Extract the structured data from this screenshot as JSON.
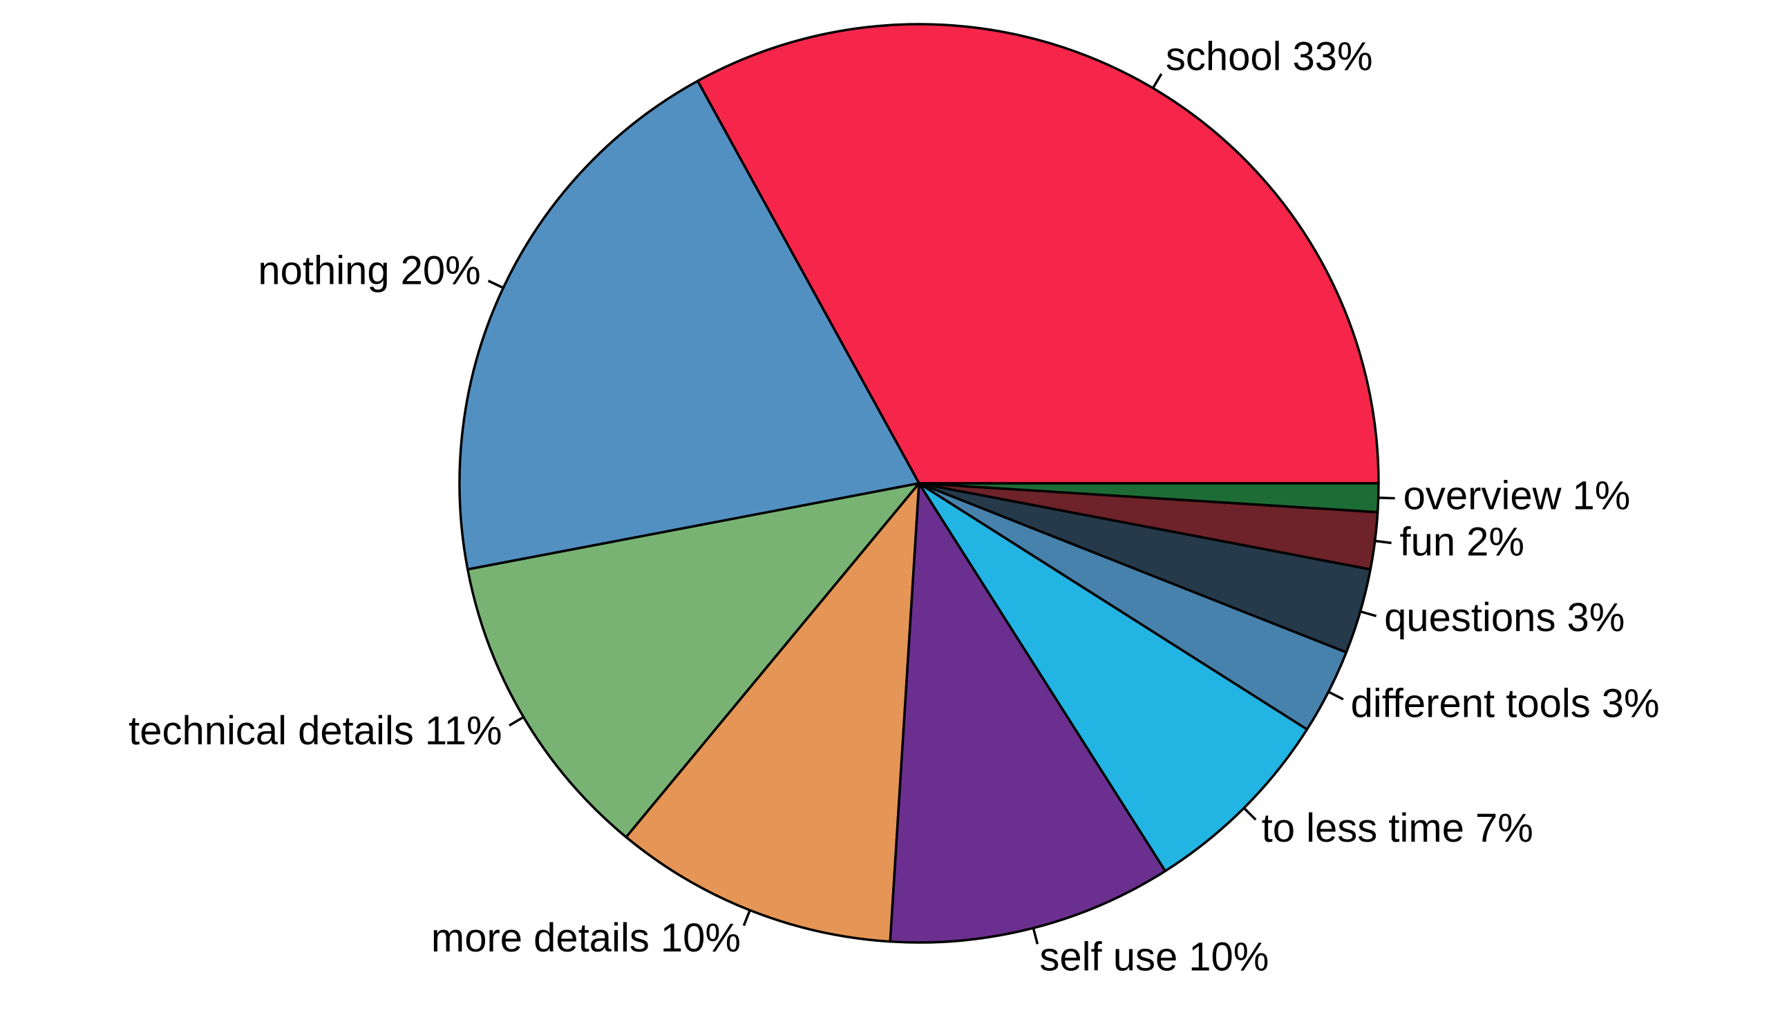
{
  "chart_data": {
    "type": "pie",
    "categories": [
      "school",
      "nothing",
      "technical details",
      "more details",
      "self use",
      "to less time",
      "different tools",
      "questions",
      "fun",
      "overview"
    ],
    "values": [
      33,
      20,
      11,
      10,
      10,
      7,
      3,
      3,
      2,
      1
    ],
    "value_labels": [
      "33%",
      "20%",
      "11%",
      "10%",
      "10%",
      "7%",
      "3%",
      "3%",
      "2%",
      "1%"
    ],
    "colors": [
      "#f5264a",
      "#5390c2",
      "#79b374",
      "#e59555",
      "#6b2f8f",
      "#22b4e2",
      "#4682ab",
      "#253a4a",
      "#6e2229",
      "#1e6c35"
    ]
  }
}
